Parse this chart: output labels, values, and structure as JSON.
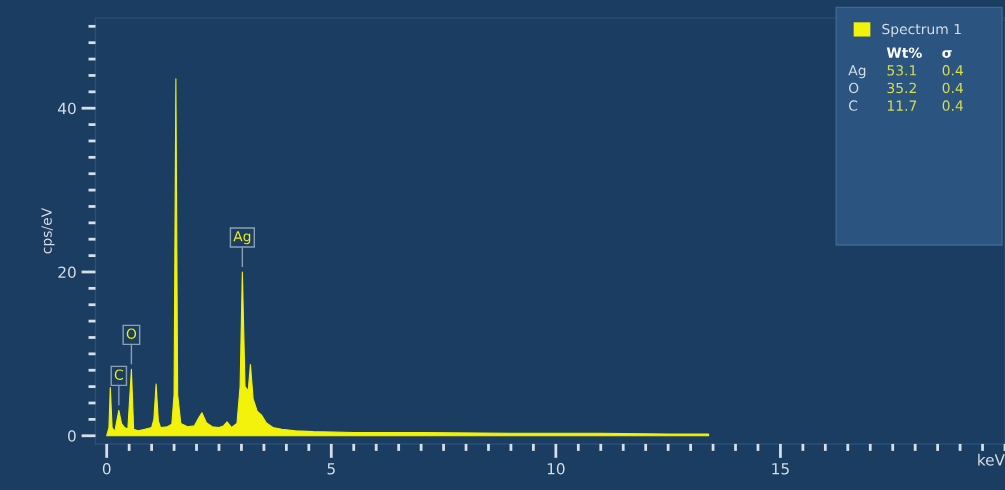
{
  "chart_data": {
    "type": "area",
    "ylabel": "cps/eV",
    "xlabel": "keV",
    "legend": "top right",
    "grid": false,
    "xlim": [
      -0.25,
      20
    ],
    "ylim": [
      -1,
      51
    ],
    "xticks": [
      0,
      {
        "value": 0.5,
        "label": null
      },
      {
        "value": 1,
        "label": null
      },
      {
        "value": 1.5,
        "label": null
      },
      {
        "value": 2,
        "label": null
      },
      {
        "value": 2.5,
        "label": null
      },
      {
        "value": 3,
        "label": null
      },
      {
        "value": 3.5,
        "label": null
      },
      {
        "value": 4,
        "label": null
      },
      {
        "value": 4.5,
        "label": null
      },
      5,
      {
        "value": 5.5,
        "label": null
      },
      {
        "value": 6,
        "label": null
      },
      {
        "value": 6.5,
        "label": null
      },
      {
        "value": 7,
        "label": null
      },
      {
        "value": 7.5,
        "label": null
      },
      {
        "value": 8,
        "label": null
      },
      {
        "value": 8.5,
        "label": null
      },
      {
        "value": 9,
        "label": null
      },
      {
        "value": 9.5,
        "label": null
      },
      10,
      {
        "value": 10.5,
        "label": null
      },
      {
        "value": 11,
        "label": null
      },
      {
        "value": 11.5,
        "label": null
      },
      {
        "value": 12,
        "label": null
      },
      {
        "value": 12.5,
        "label": null
      },
      {
        "value": 13,
        "label": null
      },
      {
        "value": 13.5,
        "label": null
      },
      {
        "value": 14,
        "label": null
      },
      {
        "value": 14.5,
        "label": null
      },
      15,
      {
        "value": 15.5,
        "label": null
      },
      {
        "value": 16,
        "label": null
      },
      {
        "value": 16.5,
        "label": null
      },
      {
        "value": 17,
        "label": null
      },
      {
        "value": 17.5,
        "label": null
      },
      {
        "value": 18,
        "label": null
      },
      {
        "value": 18.5,
        "label": null
      },
      {
        "value": 19,
        "label": null
      },
      {
        "value": 19.5,
        "label": null
      },
      {
        "value": 20,
        "label": null
      }
    ],
    "yticks": [
      0,
      {
        "value": 2,
        "label": null
      },
      {
        "value": 4,
        "label": null
      },
      {
        "value": 6,
        "label": null
      },
      {
        "value": 8,
        "label": null
      },
      {
        "value": 10,
        "label": null
      },
      {
        "value": 12,
        "label": null
      },
      {
        "value": 14,
        "label": null
      },
      {
        "value": 16,
        "label": null
      },
      {
        "value": 18,
        "label": null
      },
      20,
      {
        "value": 22,
        "label": null
      },
      {
        "value": 24,
        "label": null
      },
      {
        "value": 26,
        "label": null
      },
      {
        "value": 28,
        "label": null
      },
      {
        "value": 30,
        "label": null
      },
      {
        "value": 32,
        "label": null
      },
      {
        "value": 34,
        "label": null
      },
      {
        "value": 36,
        "label": null
      },
      {
        "value": 38,
        "label": null
      },
      40,
      {
        "value": 42,
        "label": null
      },
      {
        "value": 44,
        "label": null
      },
      {
        "value": 46,
        "label": null
      },
      {
        "value": 48,
        "label": null
      },
      {
        "value": 50,
        "label": null
      }
    ],
    "x": [
      0.0,
      0.05,
      0.08,
      0.12,
      0.18,
      0.27,
      0.33,
      0.4,
      0.47,
      0.55,
      0.6,
      0.7,
      0.85,
      1.0,
      1.05,
      1.1,
      1.15,
      1.2,
      1.35,
      1.45,
      1.5,
      1.54,
      1.58,
      1.65,
      1.8,
      1.95,
      2.05,
      2.12,
      2.22,
      2.35,
      2.5,
      2.6,
      2.68,
      2.78,
      2.9,
      2.97,
      3.02,
      3.08,
      3.15,
      3.2,
      3.26,
      3.35,
      3.45,
      3.55,
      3.7,
      3.9,
      4.2,
      4.6,
      5.5,
      7,
      9,
      11,
      12.5,
      13.4
    ],
    "series": [
      {
        "name": "Spectrum 1",
        "color": "#f2f20a",
        "values": [
          0,
          1,
          5.9,
          1.0,
          0.5,
          3.1,
          1.5,
          1.0,
          0.8,
          8.1,
          0.8,
          0.6,
          0.8,
          1.0,
          2,
          6.3,
          1.8,
          1.0,
          1.1,
          1.4,
          5,
          43.6,
          5,
          1.5,
          1.1,
          1.2,
          2.2,
          2.8,
          1.6,
          1.1,
          1.0,
          1.2,
          1.7,
          1.0,
          1.5,
          6,
          20.0,
          6,
          5.5,
          8.7,
          4.5,
          3.0,
          2.5,
          1.6,
          1.0,
          0.8,
          0.6,
          0.5,
          0.4,
          0.4,
          0.3,
          0.3,
          0.2,
          0.2
        ]
      }
    ],
    "annotations": [
      {
        "text": "C",
        "x": 0.27,
        "y": 3.1
      },
      {
        "text": "O",
        "x": 0.55,
        "y": 8.1
      },
      {
        "text": "Ag",
        "x": 3.02,
        "y": 20.0
      },
      "Wt%",
      "σ",
      "Ag",
      "53.1",
      "0.4",
      "O",
      "35.2",
      "0.4",
      "C",
      "11.7",
      "0.4"
    ]
  }
}
